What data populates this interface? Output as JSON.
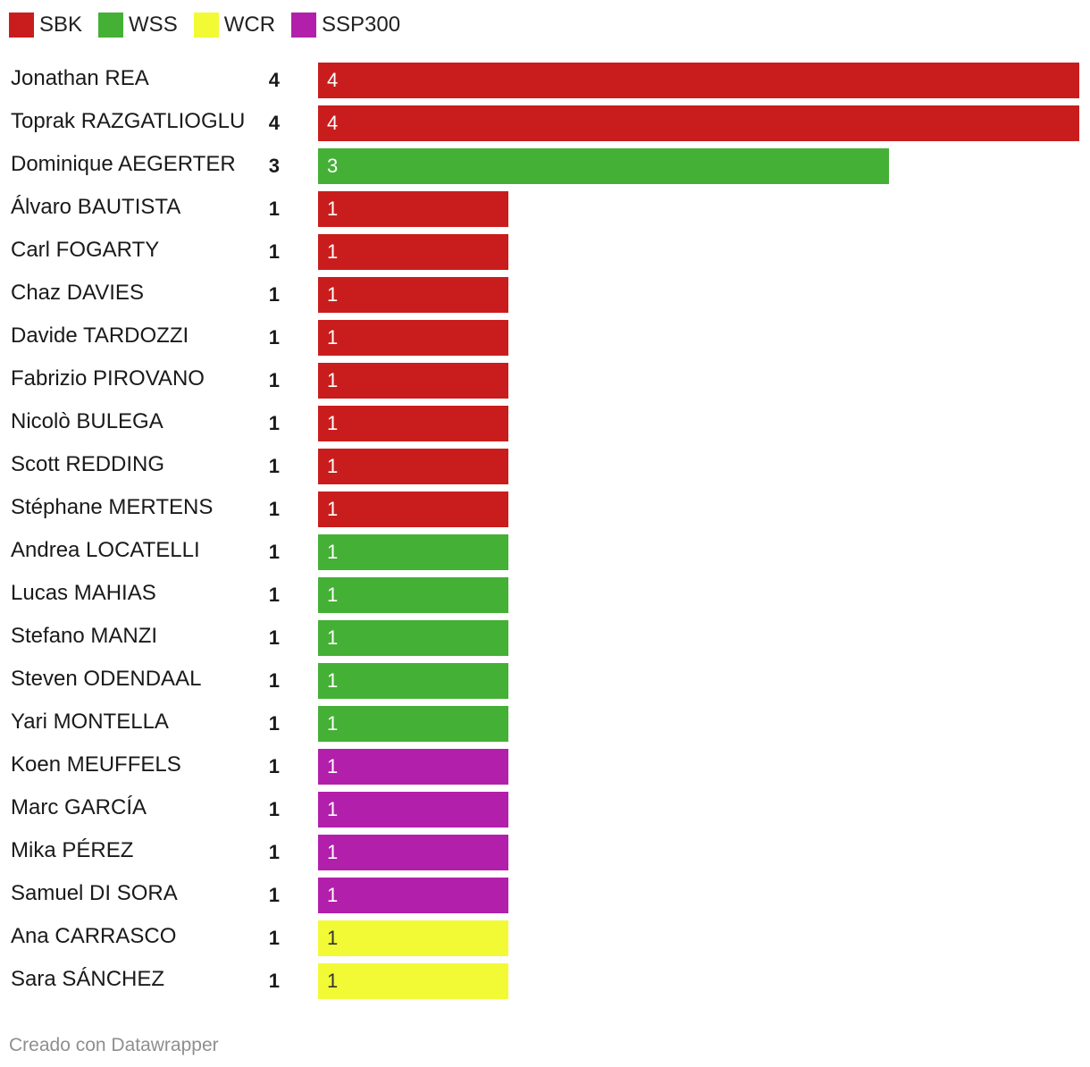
{
  "legend": [
    {
      "name": "SBK",
      "color": "#c91d1d"
    },
    {
      "name": "WSS",
      "color": "#44b035"
    },
    {
      "name": "WCR",
      "color": "#f2fa35"
    },
    {
      "name": "SSP300",
      "color": "#b21fab"
    }
  ],
  "footer": "Creado con Datawrapper",
  "chart_data": {
    "type": "bar",
    "orientation": "horizontal",
    "series_colors": {
      "SBK": "#c91d1d",
      "WSS": "#44b035",
      "WCR": "#f2fa35",
      "SSP300": "#b21fab"
    },
    "xlim": [
      0,
      4
    ],
    "rows": [
      {
        "name": "Jonathan REA",
        "value": 4,
        "series": "SBK"
      },
      {
        "name": "Toprak RAZGATLIOGLU",
        "value": 4,
        "series": "SBK"
      },
      {
        "name": "Dominique AEGERTER",
        "value": 3,
        "series": "WSS"
      },
      {
        "name": "Álvaro BAUTISTA",
        "value": 1,
        "series": "SBK"
      },
      {
        "name": "Carl FOGARTY",
        "value": 1,
        "series": "SBK"
      },
      {
        "name": "Chaz DAVIES",
        "value": 1,
        "series": "SBK"
      },
      {
        "name": "Davide TARDOZZI",
        "value": 1,
        "series": "SBK"
      },
      {
        "name": "Fabrizio PIROVANO",
        "value": 1,
        "series": "SBK"
      },
      {
        "name": "Nicolò BULEGA",
        "value": 1,
        "series": "SBK"
      },
      {
        "name": "Scott REDDING",
        "value": 1,
        "series": "SBK"
      },
      {
        "name": "Stéphane MERTENS",
        "value": 1,
        "series": "SBK"
      },
      {
        "name": "Andrea LOCATELLI",
        "value": 1,
        "series": "WSS"
      },
      {
        "name": "Lucas MAHIAS",
        "value": 1,
        "series": "WSS"
      },
      {
        "name": "Stefano MANZI",
        "value": 1,
        "series": "WSS"
      },
      {
        "name": "Steven ODENDAAL",
        "value": 1,
        "series": "WSS"
      },
      {
        "name": "Yari MONTELLA",
        "value": 1,
        "series": "WSS"
      },
      {
        "name": "Koen MEUFFELS",
        "value": 1,
        "series": "SSP300"
      },
      {
        "name": "Marc GARCÍA",
        "value": 1,
        "series": "SSP300"
      },
      {
        "name": "Mika PÉREZ",
        "value": 1,
        "series": "SSP300"
      },
      {
        "name": "Samuel DI SORA",
        "value": 1,
        "series": "SSP300"
      },
      {
        "name": "Ana CARRASCO",
        "value": 1,
        "series": "WCR"
      },
      {
        "name": "Sara SÁNCHEZ",
        "value": 1,
        "series": "WCR"
      }
    ]
  }
}
